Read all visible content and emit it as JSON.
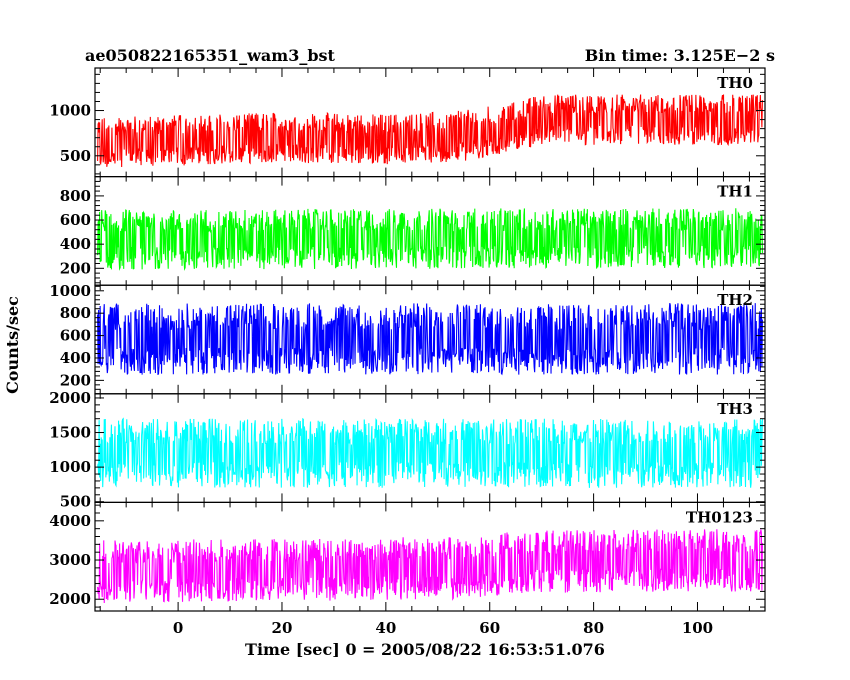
{
  "header": {
    "left_title": "ae050822165351_wam3_bst",
    "right_title": "Bin time: 3.125E−2 s"
  },
  "chart_data": {
    "type": "line",
    "title": "ae050822165351_wam3_bst",
    "subtitle": "Bin time: 3.125E−2 s",
    "xlabel": "Time [sec] 0 = 2005/08/22 16:53:51.076",
    "ylabel": "Counts/sec",
    "xlim": [
      -16,
      113
    ],
    "x_range_data": [
      -15.5,
      112.5
    ],
    "x_ticks": [
      0,
      20,
      40,
      60,
      80,
      100
    ],
    "grid": false,
    "panels": [
      {
        "name": "TH0",
        "color": "#ff0000",
        "ylim": [
          270,
          1470
        ],
        "y_ticks": [
          500,
          1000
        ],
        "trend": [
          [
            -15,
            650
          ],
          [
            20,
            700
          ],
          [
            40,
            680
          ],
          [
            55,
            720
          ],
          [
            65,
            820
          ],
          [
            70,
            900
          ],
          [
            112,
            900
          ]
        ],
        "noise_halfwidth": 280
      },
      {
        "name": "TH1",
        "color": "#00ff00",
        "ylim": [
          60,
          960
        ],
        "y_ticks": [
          200,
          400,
          600,
          800
        ],
        "trend": [
          [
            -15,
            440
          ],
          [
            112,
            450
          ]
        ],
        "noise_halfwidth": 250
      },
      {
        "name": "TH2",
        "color": "#0000ff",
        "ylim": [
          80,
          1050
        ],
        "y_ticks": [
          200,
          400,
          600,
          800,
          1000
        ],
        "trend": [
          [
            -15,
            570
          ],
          [
            112,
            570
          ]
        ],
        "noise_halfwidth": 320
      },
      {
        "name": "TH3",
        "color": "#00ffff",
        "ylim": [
          490,
          2060
        ],
        "y_ticks": [
          500,
          1000,
          1500,
          2000
        ],
        "trend": [
          [
            -15,
            1200
          ],
          [
            112,
            1200
          ]
        ],
        "noise_halfwidth": 500
      },
      {
        "name": "TH0123",
        "color": "#ff00ff",
        "ylim": [
          1700,
          4470
        ],
        "y_ticks": [
          2000,
          3000,
          4000
        ],
        "trend": [
          [
            -15,
            2700
          ],
          [
            55,
            2800
          ],
          [
            65,
            2950
          ],
          [
            112,
            3000
          ]
        ],
        "noise_halfwidth": 800
      }
    ]
  }
}
